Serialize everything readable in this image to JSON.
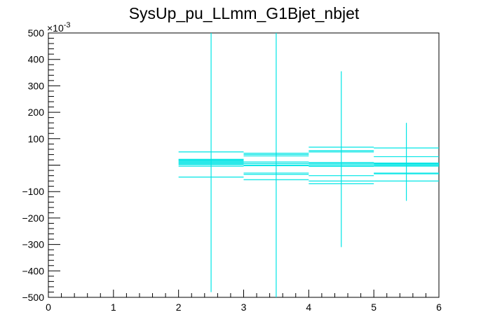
{
  "chart_data": {
    "type": "scatter",
    "title": "SysUp_pu_LLmm_G1Bjet_nbjet",
    "xlabel": "",
    "ylabel": "",
    "xlim": [
      0,
      6
    ],
    "ylim": [
      -500,
      500
    ],
    "y_multiplier_label": "×10",
    "y_multiplier_exponent": "-3",
    "x_tick_labels": [
      "0",
      "1",
      "2",
      "3",
      "4",
      "5",
      "6"
    ],
    "x_tick_values": [
      0,
      1,
      2,
      3,
      4,
      5,
      6
    ],
    "y_tick_labels": [
      "−500",
      "−400",
      "−300",
      "−200",
      "−100",
      "100",
      "200",
      "300",
      "400",
      "500"
    ],
    "y_tick_values": [
      -500,
      -400,
      -300,
      -200,
      -100,
      100,
      200,
      300,
      400,
      500
    ],
    "grid": false,
    "legend": "none",
    "line_color": "#00e5e5",
    "series": [
      {
        "points": [
          {
            "x": 2.5,
            "xerr": 0.5,
            "y": 20,
            "yerr_low": 500,
            "yerr_high": 500
          },
          {
            "x": 3.5,
            "xerr": 0.5,
            "y": 0,
            "yerr_low": 500,
            "yerr_high": 500
          },
          {
            "x": 4.5,
            "xerr": 0.5,
            "y": 10,
            "yerr_low": 320,
            "yerr_high": 345
          },
          {
            "x": 5.5,
            "xerr": 0.5,
            "y": 5,
            "yerr_low": 140,
            "yerr_high": 155
          }
        ]
      }
    ],
    "band_lines": [
      {
        "x0": 2,
        "x1": 3,
        "y": 50
      },
      {
        "x0": 2,
        "x1": 3,
        "y": 22
      },
      {
        "x0": 2,
        "x1": 3,
        "y": 18
      },
      {
        "x0": 2,
        "x1": 3,
        "y": 14
      },
      {
        "x0": 2,
        "x1": 3,
        "y": 10
      },
      {
        "x0": 2,
        "x1": 3,
        "y": 6
      },
      {
        "x0": 2,
        "x1": 3,
        "y": 2
      },
      {
        "x0": 2,
        "x1": 3,
        "y": -4
      },
      {
        "x0": 2,
        "x1": 3,
        "y": -45
      },
      {
        "x0": 3,
        "x1": 4,
        "y": 45
      },
      {
        "x0": 3,
        "x1": 4,
        "y": 40
      },
      {
        "x0": 3,
        "x1": 4,
        "y": 35
      },
      {
        "x0": 3,
        "x1": 4,
        "y": 12
      },
      {
        "x0": 3,
        "x1": 4,
        "y": 6
      },
      {
        "x0": 3,
        "x1": 4,
        "y": -2
      },
      {
        "x0": 3,
        "x1": 4,
        "y": -30
      },
      {
        "x0": 3,
        "x1": 4,
        "y": -35
      },
      {
        "x0": 3,
        "x1": 4,
        "y": -55
      },
      {
        "x0": 4,
        "x1": 5,
        "y": 68
      },
      {
        "x0": 4,
        "x1": 5,
        "y": 55
      },
      {
        "x0": 4,
        "x1": 5,
        "y": 50
      },
      {
        "x0": 4,
        "x1": 5,
        "y": 10
      },
      {
        "x0": 4,
        "x1": 5,
        "y": 5
      },
      {
        "x0": 4,
        "x1": 5,
        "y": 0
      },
      {
        "x0": 4,
        "x1": 5,
        "y": -5
      },
      {
        "x0": 4,
        "x1": 5,
        "y": -40
      },
      {
        "x0": 4,
        "x1": 5,
        "y": -60
      },
      {
        "x0": 4,
        "x1": 5,
        "y": -70
      },
      {
        "x0": 5,
        "x1": 6,
        "y": 65
      },
      {
        "x0": 5,
        "x1": 6,
        "y": 32
      },
      {
        "x0": 5,
        "x1": 6,
        "y": 8
      },
      {
        "x0": 5,
        "x1": 6,
        "y": 4
      },
      {
        "x0": 5,
        "x1": 6,
        "y": 0
      },
      {
        "x0": 5,
        "x1": 6,
        "y": -4
      },
      {
        "x0": 5,
        "x1": 6,
        "y": -30
      },
      {
        "x0": 5,
        "x1": 6,
        "y": -33
      },
      {
        "x0": 5,
        "x1": 6,
        "y": -60
      }
    ]
  }
}
